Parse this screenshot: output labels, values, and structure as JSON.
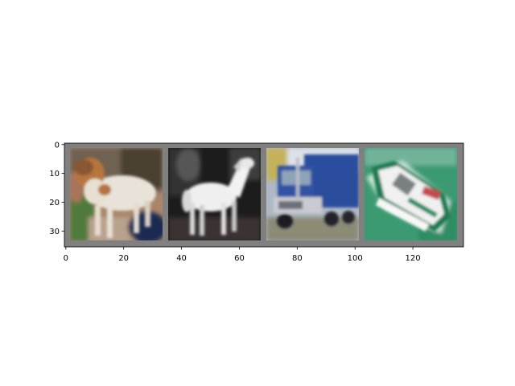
{
  "figure": {
    "background": "#ffffff",
    "grid_background": "#808080"
  },
  "image_grid": {
    "description": "CIFAR-like 4-image grid shown with matplotlib imshow",
    "tiles": [
      {
        "content": "dog",
        "dominant_colors": [
          "#e9e4dc",
          "#b8743d",
          "#5a4a35",
          "#4f7a3a"
        ]
      },
      {
        "content": "horse",
        "dominant_colors": [
          "#f1f1f1",
          "#1b1b1b",
          "#5a5a5a"
        ]
      },
      {
        "content": "truck",
        "dominant_colors": [
          "#2f4f9d",
          "#a9b8c7",
          "#c4b25a"
        ]
      },
      {
        "content": "ship",
        "dominant_colors": [
          "#1f8a63",
          "#f3f3f3",
          "#c44b4b",
          "#5aa984"
        ]
      }
    ]
  },
  "axes": {
    "x_ticks": [
      "0",
      "20",
      "40",
      "60",
      "80",
      "100",
      "120"
    ],
    "y_ticks": [
      "0",
      "10",
      "20",
      "30"
    ],
    "x_range": [
      -0.5,
      137.5
    ],
    "y_range": [
      35.5,
      -0.5
    ]
  }
}
